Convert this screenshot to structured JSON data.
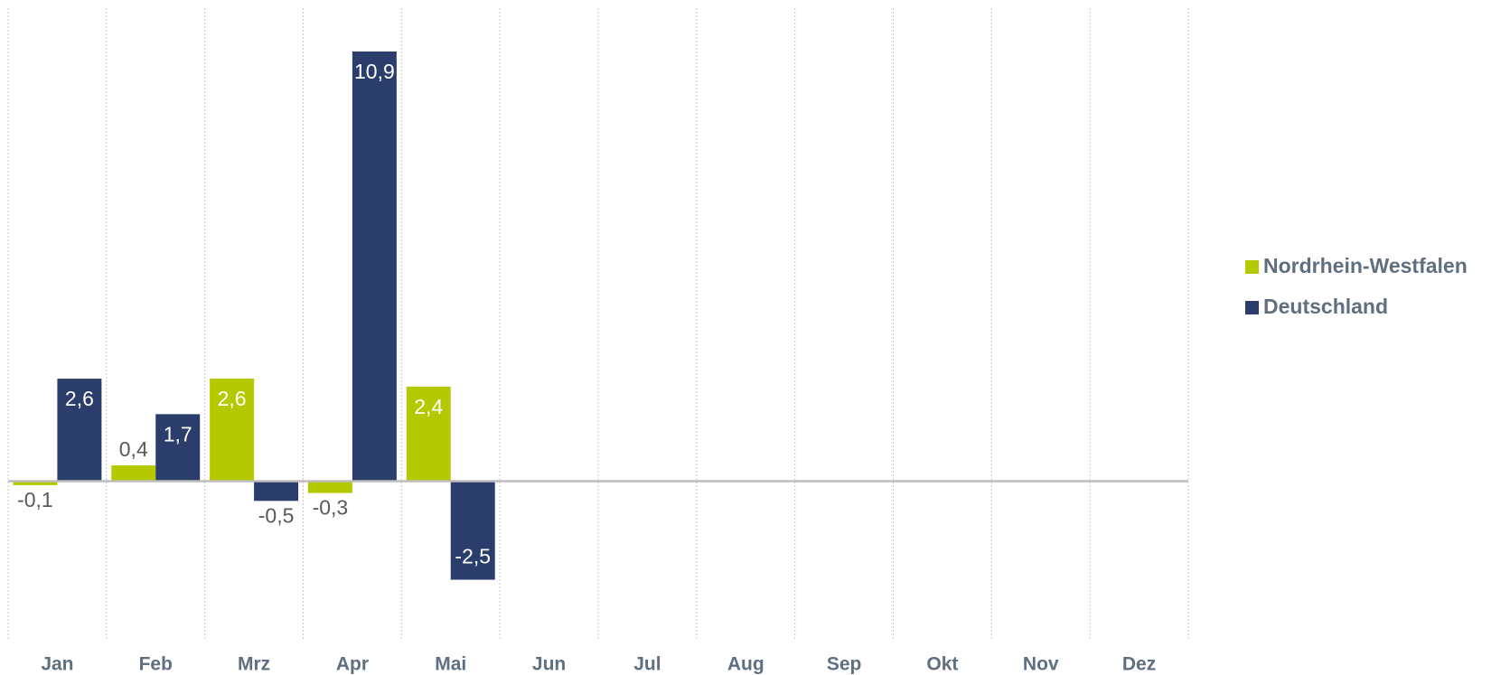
{
  "chart_data": {
    "type": "bar",
    "categories": [
      "Jan",
      "Feb",
      "Mrz",
      "Apr",
      "Mai",
      "Jun",
      "Jul",
      "Aug",
      "Sep",
      "Okt",
      "Nov",
      "Dez"
    ],
    "series": [
      {
        "name": "Nordrhein-Westfalen",
        "color": "#b5c900",
        "values": [
          -0.1,
          0.4,
          2.6,
          -0.3,
          2.4,
          null,
          null,
          null,
          null,
          null,
          null,
          null
        ],
        "value_labels": [
          "-0,1",
          "0,4",
          "2,6",
          "-0,3",
          "2,4",
          null,
          null,
          null,
          null,
          null,
          null,
          null
        ]
      },
      {
        "name": "Deutschland",
        "color": "#2b3d6b",
        "values": [
          2.6,
          1.7,
          -0.5,
          10.9,
          -2.5,
          null,
          null,
          null,
          null,
          null,
          null,
          null
        ],
        "value_labels": [
          "2,6",
          "1,7",
          "-0,5",
          "10,9",
          "-2,5",
          null,
          null,
          null,
          null,
          null,
          null,
          null
        ]
      }
    ],
    "ylim": [
      -4,
      12
    ],
    "legend": "right"
  }
}
